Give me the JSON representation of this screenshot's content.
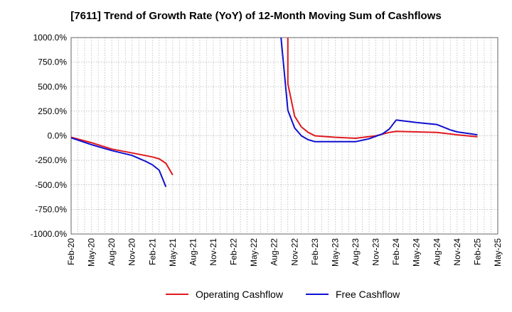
{
  "title": "[7611]  Trend of Growth Rate (YoY) of 12-Month Moving Sum of Cashflows",
  "colors": {
    "operating": "#e0191f",
    "free": "#1010d0",
    "grid": "#b0b0b0",
    "axis": "#666666"
  },
  "chart_data": {
    "type": "line",
    "title": "[7611]  Trend of Growth Rate (YoY) of 12-Month Moving Sum of Cashflows",
    "xlabel": "",
    "ylabel": "",
    "x_range": [
      "2020-02",
      "2025-05"
    ],
    "ylim": [
      -1000,
      1000
    ],
    "y_ticks": [
      1000,
      750,
      500,
      250,
      0,
      -250,
      -500,
      -750,
      -1000
    ],
    "y_tick_labels": [
      "1000.0%",
      "750.0%",
      "500.0%",
      "250.0%",
      "0.0%",
      "-250.0%",
      "-500.0%",
      "-750.0%",
      "-1000.0%"
    ],
    "x_tick_labels": [
      "Feb-20",
      "May-20",
      "Aug-20",
      "Nov-20",
      "Feb-21",
      "May-21",
      "Aug-21",
      "Nov-21",
      "Feb-22",
      "May-22",
      "Aug-22",
      "Nov-22",
      "Feb-23",
      "May-23",
      "Aug-23",
      "Nov-23",
      "Feb-24",
      "May-24",
      "Aug-24",
      "Nov-24",
      "Feb-25",
      "May-25"
    ],
    "grid": true,
    "legend_position": "bottom",
    "series": [
      {
        "name": "Operating Cashflow",
        "color": "#e0191f",
        "segments": [
          [
            [
              "2020-02",
              -15
            ],
            [
              "2020-05",
              -70
            ],
            [
              "2020-08",
              -135
            ],
            [
              "2020-11",
              -175
            ],
            [
              "2021-02",
              -215
            ],
            [
              "2021-03",
              -235
            ],
            [
              "2021-04",
              -280
            ],
            [
              "2021-05",
              -400
            ]
          ],
          [
            [
              "2022-10",
              1000
            ],
            [
              "2022-10",
              530
            ],
            [
              "2022-11",
              200
            ],
            [
              "2022-12",
              90
            ],
            [
              "2023-01",
              35
            ],
            [
              "2023-02",
              0
            ],
            [
              "2023-05",
              -15
            ],
            [
              "2023-08",
              -25
            ],
            [
              "2023-11",
              0
            ],
            [
              "2024-01",
              35
            ],
            [
              "2024-02",
              45
            ],
            [
              "2024-05",
              40
            ],
            [
              "2024-08",
              35
            ],
            [
              "2024-11",
              10
            ],
            [
              "2025-02",
              -10
            ]
          ]
        ]
      },
      {
        "name": "Free Cashflow",
        "color": "#1010d0",
        "segments": [
          [
            [
              "2020-02",
              -20
            ],
            [
              "2020-05",
              -90
            ],
            [
              "2020-08",
              -150
            ],
            [
              "2020-11",
              -200
            ],
            [
              "2021-01",
              -260
            ],
            [
              "2021-02",
              -295
            ],
            [
              "2021-03",
              -350
            ],
            [
              "2021-04",
              -520
            ]
          ],
          [
            [
              "2022-09",
              1000
            ],
            [
              "2022-10",
              260
            ],
            [
              "2022-11",
              80
            ],
            [
              "2022-12",
              0
            ],
            [
              "2023-01",
              -40
            ],
            [
              "2023-02",
              -60
            ],
            [
              "2023-05",
              -60
            ],
            [
              "2023-08",
              -60
            ],
            [
              "2023-10",
              -30
            ],
            [
              "2023-12",
              20
            ],
            [
              "2024-01",
              70
            ],
            [
              "2024-02",
              160
            ],
            [
              "2024-05",
              135
            ],
            [
              "2024-08",
              115
            ],
            [
              "2024-10",
              60
            ],
            [
              "2024-11",
              40
            ],
            [
              "2025-02",
              10
            ]
          ]
        ]
      }
    ]
  }
}
